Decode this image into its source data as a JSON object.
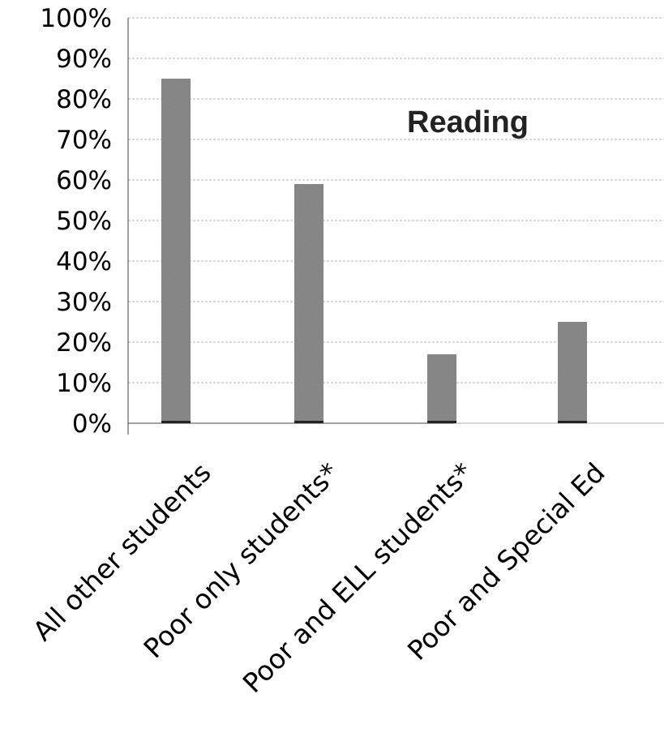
{
  "chart_data": {
    "type": "bar",
    "title": "Reading",
    "categories": [
      "All other students",
      "Poor only students*",
      "Poor and ELL students*",
      "Poor and Special Ed"
    ],
    "values": [
      85,
      59,
      17,
      25
    ],
    "y_tick_labels": [
      "0%",
      "10%",
      "20%",
      "30%",
      "40%",
      "50%",
      "60%",
      "70%",
      "80%",
      "90%",
      "100%"
    ],
    "ylim": [
      0,
      100
    ],
    "y_unit": "%",
    "grid": true,
    "legend": "none",
    "colors": {
      "bar": "#8c8c8c",
      "bar_base": "#222222",
      "grid": "#b0b0b0",
      "axis": "#444444"
    }
  }
}
